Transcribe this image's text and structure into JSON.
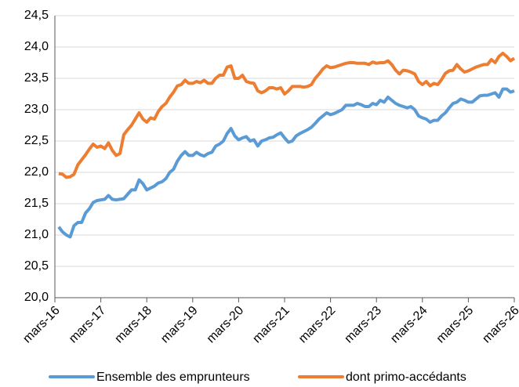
{
  "chart_data": {
    "type": "line",
    "categories": [
      "mars-16",
      null,
      null,
      null,
      null,
      null,
      null,
      null,
      null,
      null,
      null,
      null,
      "mars-17",
      null,
      null,
      null,
      null,
      null,
      null,
      null,
      null,
      null,
      null,
      null,
      "mars-18",
      null,
      null,
      null,
      null,
      null,
      null,
      null,
      null,
      null,
      null,
      null,
      "mars-19",
      null,
      null,
      null,
      null,
      null,
      null,
      null,
      null,
      null,
      null,
      null,
      "mars-20",
      null,
      null,
      null,
      null,
      null,
      null,
      null,
      null,
      null,
      null,
      null,
      "mars-21",
      null,
      null,
      null,
      null,
      null,
      null,
      null,
      null,
      null,
      null,
      null,
      "mars-22",
      null,
      null,
      null,
      null,
      null,
      null,
      null,
      null,
      null,
      null,
      null,
      "mars-23",
      null,
      null,
      null,
      null,
      null,
      null,
      null,
      null,
      null,
      null,
      null,
      "mars-24",
      null,
      null,
      null,
      null,
      null,
      null,
      null,
      null,
      null,
      null,
      null,
      "mars-25",
      null,
      null,
      null,
      null,
      null,
      null,
      null,
      null,
      null,
      null,
      null,
      "mars-26"
    ],
    "series": [
      {
        "name": "Ensemble des emprunteurs",
        "color": "#5b9bd5",
        "values": [
          null,
          21.13,
          21.05,
          21.0,
          20.97,
          21.15,
          21.2,
          21.2,
          21.35,
          21.42,
          21.52,
          21.55,
          21.56,
          21.57,
          21.63,
          21.57,
          21.56,
          21.57,
          21.58,
          21.65,
          21.72,
          21.72,
          21.88,
          21.82,
          21.72,
          21.75,
          21.78,
          21.83,
          21.85,
          21.9,
          22.0,
          22.05,
          22.18,
          22.27,
          22.33,
          22.27,
          22.27,
          22.32,
          22.28,
          22.26,
          22.3,
          22.32,
          22.42,
          22.45,
          22.5,
          22.62,
          22.7,
          22.58,
          22.52,
          22.55,
          22.57,
          22.5,
          22.52,
          22.42,
          22.5,
          22.52,
          22.55,
          22.56,
          22.6,
          22.63,
          22.55,
          22.48,
          22.5,
          22.58,
          22.62,
          22.65,
          22.68,
          22.72,
          22.78,
          22.85,
          22.9,
          22.95,
          22.92,
          22.94,
          22.97,
          23.0,
          23.07,
          23.07,
          23.07,
          23.1,
          23.08,
          23.05,
          23.05,
          23.1,
          23.08,
          23.15,
          23.12,
          23.2,
          23.15,
          23.1,
          23.07,
          23.05,
          23.03,
          23.05,
          23.0,
          22.9,
          22.87,
          22.85,
          22.8,
          22.83,
          22.83,
          22.9,
          22.95,
          23.03,
          23.1,
          23.12,
          23.17,
          23.15,
          23.12,
          23.12,
          23.17,
          23.22,
          23.23,
          23.23,
          23.25,
          23.27,
          23.2,
          23.33,
          23.33,
          23.28,
          23.3
        ]
      },
      {
        "name": "dont primo-accédants",
        "color": "#ed7d31",
        "values": [
          null,
          21.98,
          21.97,
          21.92,
          21.93,
          21.97,
          22.12,
          22.2,
          22.28,
          22.37,
          22.45,
          22.4,
          22.42,
          22.38,
          22.47,
          22.35,
          22.27,
          22.3,
          22.6,
          22.68,
          22.75,
          22.85,
          22.95,
          22.85,
          22.8,
          22.87,
          22.85,
          22.97,
          23.05,
          23.1,
          23.2,
          23.28,
          23.38,
          23.4,
          23.47,
          23.42,
          23.42,
          23.45,
          23.43,
          23.47,
          23.42,
          23.42,
          23.5,
          23.55,
          23.55,
          23.68,
          23.7,
          23.5,
          23.5,
          23.55,
          23.45,
          23.43,
          23.42,
          23.3,
          23.27,
          23.3,
          23.35,
          23.35,
          23.33,
          23.35,
          23.25,
          23.3,
          23.37,
          23.37,
          23.37,
          23.36,
          23.37,
          23.4,
          23.5,
          23.57,
          23.65,
          23.7,
          23.67,
          23.68,
          23.7,
          23.72,
          23.74,
          23.75,
          23.75,
          23.74,
          23.74,
          23.74,
          23.72,
          23.76,
          23.74,
          23.75,
          23.75,
          23.78,
          23.72,
          23.63,
          23.57,
          23.63,
          23.62,
          23.6,
          23.57,
          23.45,
          23.4,
          23.45,
          23.38,
          23.42,
          23.4,
          23.48,
          23.58,
          23.62,
          23.63,
          23.72,
          23.65,
          23.6,
          23.62,
          23.65,
          23.68,
          23.7,
          23.72,
          23.72,
          23.8,
          23.75,
          23.85,
          23.9,
          23.85,
          23.78,
          23.82
        ]
      }
    ],
    "ylim": [
      20,
      24.5
    ],
    "yticks": [
      {
        "value": 20,
        "label": "20,0"
      },
      {
        "value": 20.5,
        "label": "20,5"
      },
      {
        "value": 21,
        "label": "21,0"
      },
      {
        "value": 21.5,
        "label": "21,5"
      },
      {
        "value": 22,
        "label": "22,0"
      },
      {
        "value": 22.5,
        "label": "22,5"
      },
      {
        "value": 23,
        "label": "23,0"
      },
      {
        "value": 23.5,
        "label": "23,5"
      },
      {
        "value": 24,
        "label": "24,0"
      },
      {
        "value": 24.5,
        "label": "24,5"
      }
    ],
    "grid": true,
    "legend": "bottom"
  }
}
